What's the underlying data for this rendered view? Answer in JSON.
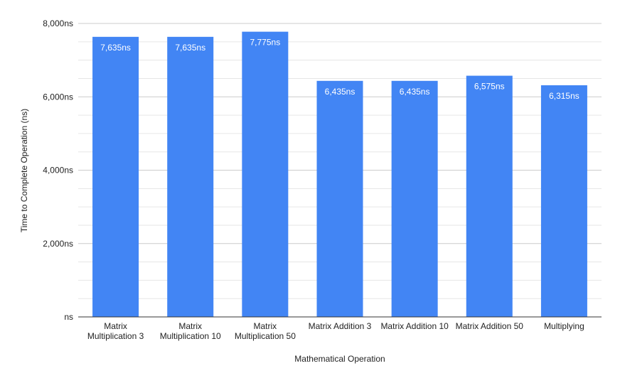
{
  "chart_data": {
    "type": "bar",
    "title": "",
    "xlabel": "Mathematical Operation",
    "ylabel": "Time to Complete Operation (ns)",
    "categories": [
      [
        "Matrix",
        "Multiplication 3"
      ],
      [
        "Matrix",
        "Multiplication 10"
      ],
      [
        "Matrix",
        "Multiplication 50"
      ],
      [
        "Matrix Addition 3"
      ],
      [
        "Matrix Addition 10"
      ],
      [
        "Matrix Addition 50"
      ],
      [
        "Multiplying"
      ]
    ],
    "values": [
      7635,
      7635,
      7775,
      6435,
      6435,
      6575,
      6315
    ],
    "data_labels": [
      "7,635ns",
      "7,635ns",
      "7,775ns",
      "6,435ns",
      "6,435ns",
      "6,575ns",
      "6,315ns"
    ],
    "ylim": [
      0,
      8000
    ],
    "yticks": [
      0,
      2000,
      4000,
      6000,
      8000
    ],
    "ytick_labels": [
      "ns",
      "2,000ns",
      "4,000ns",
      "6,000ns",
      "8,000ns"
    ],
    "minor_gridlines": [
      500,
      1000,
      1500,
      2500,
      3000,
      3500,
      4500,
      5000,
      5500,
      6500,
      7000,
      7500
    ],
    "grid": true,
    "legend": "none",
    "colors": {
      "bar": "#4285f4",
      "gridline": "#cccccc",
      "minor_gridline": "#e6e6e6",
      "axis": "#333333"
    }
  }
}
